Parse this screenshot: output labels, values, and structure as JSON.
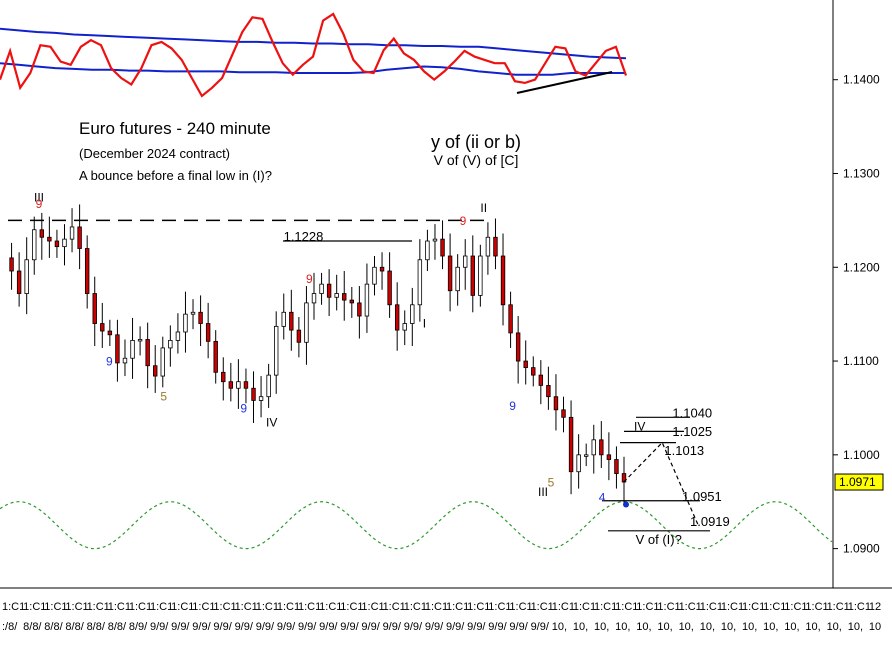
{
  "chart_data": {
    "type": "candlestick",
    "title": "Euro futures - 240 minute",
    "subtitle": "(December 2024 contract)",
    "note": "A bounce before a final low in (I)?",
    "wave_title": "y of (ii or b)",
    "wave_subtitle": "V of (V) of [C]",
    "ylim": [
      1.0858,
      1.1485
    ],
    "y_ticks": [
      "1.1400",
      "1.1300",
      "1.1200",
      "1.1100",
      "1.1000",
      "1.0900"
    ],
    "y_tick_values": [
      1.14,
      1.13,
      1.12,
      1.11,
      1.1,
      1.09
    ],
    "last_price": "1.0971",
    "last_price_value": 1.0971,
    "x_tick_labels": [
      "1:C1",
      "1:C1",
      "1:C1",
      "1:C1",
      "1:C1",
      "1:C1",
      "1:C1",
      "1:C1",
      "1:C1",
      "1:C1",
      "1:C1",
      "1:C1",
      "1:C1",
      "1:C1",
      "1:C1",
      "1:C1",
      "1:C1",
      "1:C1",
      "1:C1",
      "1:C1",
      "1:C1",
      "1:C1",
      "1:C1",
      "1:C1",
      "1:C1",
      "1:C1",
      "1:C1",
      "1:C1",
      "1:C1",
      "1:C1",
      "1:C1",
      "1:C1",
      "1:C1",
      "1:C1",
      "1:C1",
      "1:C1",
      "1:C1",
      "1:C1",
      "1:C1",
      "1:C1",
      "1:C1",
      "12"
    ],
    "x_date_labels": [
      ":/8/",
      "8/8/",
      "8/8/",
      "8/8/",
      "8/8/",
      "8/8/",
      "8/9/",
      "9/9/",
      "9/9/",
      "9/9/",
      "9/9/",
      "9/9/",
      "9/9/",
      "9/9/",
      "9/9/",
      "9/9/",
      "9/9/",
      "9/9/",
      "9/9/",
      "9/9/",
      "9/9/",
      "9/9/",
      "9/9/",
      "9/9/",
      "9/9/",
      "9/9/",
      "10,",
      "10,",
      "10,",
      "10,",
      "10,",
      "10,",
      "10,",
      "10,",
      "10,",
      "10,",
      "10,",
      "10,",
      "10,",
      "10,",
      "10,",
      "10"
    ],
    "price_series": [
      1.121,
      1.1196,
      1.1172,
      1.1208,
      1.124,
      1.1232,
      1.1228,
      1.1222,
      1.123,
      1.1243,
      1.122,
      1.1172,
      1.114,
      1.1132,
      1.1128,
      1.1098,
      1.1103,
      1.1122,
      1.1123,
      1.1095,
      1.1084,
      1.1114,
      1.1122,
      1.1131,
      1.115,
      1.1152,
      1.114,
      1.1121,
      1.1088,
      1.1078,
      1.1071,
      1.1078,
      1.1071,
      1.1058,
      1.1062,
      1.1085,
      1.1137,
      1.1152,
      1.1133,
      1.112,
      1.1162,
      1.1172,
      1.1182,
      1.1168,
      1.1172,
      1.1165,
      1.1162,
      1.1148,
      1.1182,
      1.12,
      1.1196,
      1.116,
      1.1133,
      1.114,
      1.116,
      1.1208,
      1.1228,
      1.123,
      1.1212,
      1.1175,
      1.12,
      1.1212,
      1.117,
      1.1212,
      1.1232,
      1.1212,
      1.116,
      1.113,
      1.11,
      1.1093,
      1.1085,
      1.1074,
      1.1062,
      1.1048,
      1.104,
      1.0982,
      1.1,
      1.1,
      1.1016,
      1.1,
      1.0995,
      1.098,
      1.0971
    ],
    "price_labels": [
      {
        "text": "III",
        "x": 20,
        "y": 1.127,
        "color": "#000000"
      },
      {
        "text": "9",
        "x": 21,
        "y": 1.1263,
        "color": "#dd2222"
      },
      {
        "text": "9",
        "x": 65,
        "y": 1.1095,
        "color": "#2233dd"
      },
      {
        "text": "5",
        "x": 99,
        "y": 1.1058,
        "color": "#9a7a2a"
      },
      {
        "text": "9",
        "x": 149,
        "y": 1.1045,
        "color": "#2233dd"
      },
      {
        "text": "IV",
        "x": 165,
        "y": 1.103,
        "color": "#000000"
      },
      {
        "text": "9",
        "x": 190,
        "y": 1.1183,
        "color": "#dd2222"
      },
      {
        "text": "1.1228",
        "x": 176,
        "y": 1.1228,
        "color": "#000000"
      },
      {
        "text": "I",
        "x": 263,
        "y": 1.1136,
        "color": "#000000"
      },
      {
        "text": "9",
        "x": 286,
        "y": 1.1245,
        "color": "#dd2222"
      },
      {
        "text": "II",
        "x": 299,
        "y": 1.1259,
        "color": "#000000"
      },
      {
        "text": "9",
        "x": 317,
        "y": 1.1048,
        "color": "#2233dd"
      },
      {
        "text": "5",
        "x": 341,
        "y": 1.0966,
        "color": "#9a7a2a"
      },
      {
        "text": "III",
        "x": 335,
        "y": 1.0956,
        "color": "#000000"
      },
      {
        "text": "4",
        "x": 373,
        "y": 1.095,
        "color": "#2233dd"
      },
      {
        "text": "IV",
        "x": 395,
        "y": 1.1026,
        "color": "#000000"
      },
      {
        "text": "1.1040",
        "x": 419,
        "y": 1.104,
        "color": "#000000"
      },
      {
        "text": "1.1025",
        "x": 419,
        "y": 1.102,
        "color": "#000000"
      },
      {
        "text": "1.1013",
        "x": 414,
        "y": 1.1,
        "color": "#000000"
      },
      {
        "text": "1.0951",
        "x": 425,
        "y": 1.0951,
        "color": "#000000"
      },
      {
        "text": "1.0919",
        "x": 430,
        "y": 1.0924,
        "color": "#000000"
      },
      {
        "text": "V of (I)?",
        "x": 396,
        "y": 1.0905,
        "color": "#000000"
      }
    ],
    "level_lines": [
      {
        "label": "1.1228",
        "value": 1.1228
      },
      {
        "label": "1.1040",
        "value": 1.104
      },
      {
        "label": "1.1025",
        "value": 1.1025
      },
      {
        "label": "1.1013",
        "value": 1.1013
      },
      {
        "label": "1.0951",
        "value": 1.0951
      },
      {
        "label": "1.0919",
        "value": 1.0919
      }
    ],
    "resistance_line": 1.125,
    "projection": [
      {
        "x": 373,
        "y": 1.0971
      },
      {
        "x": 397,
        "y": 1.1013
      },
      {
        "x": 420,
        "y": 1.0923
      }
    ],
    "oscillator": {
      "red": [
        20,
        55,
        10,
        28,
        62,
        60,
        42,
        38,
        60,
        68,
        62,
        34,
        22,
        14,
        34,
        62,
        66,
        58,
        44,
        22,
        0,
        10,
        22,
        50,
        78,
        96,
        94,
        66,
        40,
        26,
        38,
        48,
        92,
        100,
        76,
        44,
        30,
        28,
        56,
        70,
        52,
        44,
        30,
        20,
        30,
        42,
        55,
        48,
        44,
        40,
        40,
        18,
        16,
        20,
        40,
        60,
        58,
        30,
        25,
        40,
        55,
        60,
        25
      ],
      "upper_band": [
        82,
        80,
        78,
        77,
        75,
        74,
        73,
        72,
        71,
        70,
        69,
        68,
        67,
        66,
        66,
        65,
        65,
        64,
        64,
        63,
        63,
        62,
        62,
        61,
        61,
        60,
        60,
        58,
        56,
        54,
        52,
        50,
        48,
        47,
        46
      ],
      "lower_band": [
        40,
        38,
        36,
        34,
        33,
        32,
        32,
        31,
        31,
        30,
        30,
        30,
        30,
        29,
        29,
        29,
        28,
        28,
        28,
        28,
        29,
        32,
        34,
        36,
        35,
        33,
        30,
        28,
        26,
        26,
        26,
        28,
        28,
        28,
        28
      ]
    },
    "cycle": {
      "period_bars": 20,
      "amplitude": 0.0025,
      "center": 1.0925,
      "color": "#2e9a2e"
    },
    "colors": {
      "candle_up": "#ffffff",
      "candle_down": "#cc0000",
      "outline": "#000000",
      "oscillator": "#ee1111",
      "bands": "#1122cc",
      "last_price_bg": "#ffff00",
      "axis": "#000000"
    },
    "grid": false
  }
}
